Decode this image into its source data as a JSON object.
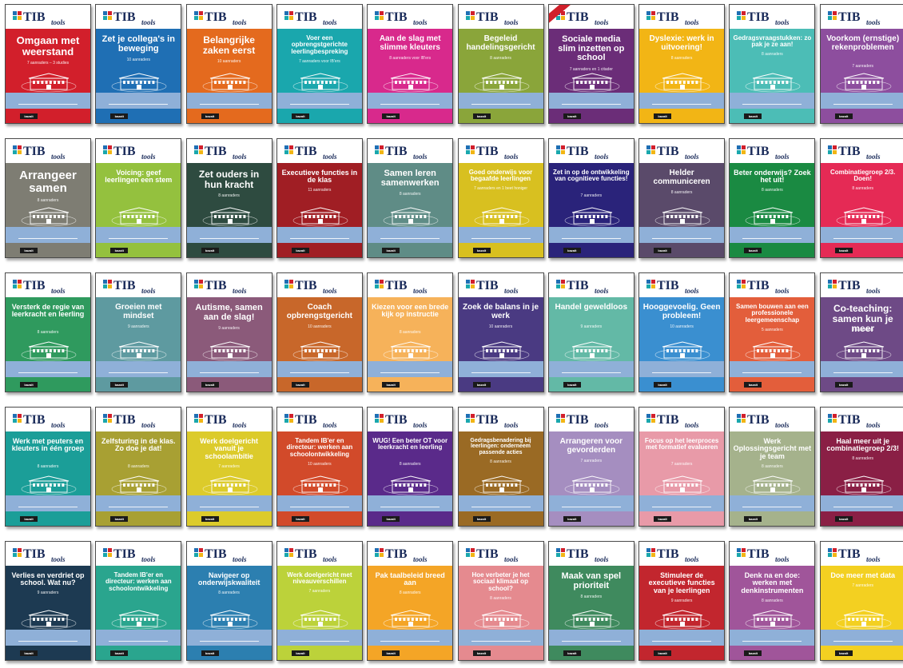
{
  "logo": {
    "letters": "TIB",
    "script": "tools",
    "publisher": "bazalt"
  },
  "books": [
    {
      "title": "Omgaan met weerstand",
      "count": "7 aanraders – 3 studies",
      "color": "#d21f2b",
      "lines": [
        "Omgaan met",
        "weerstand"
      ],
      "size": 13
    },
    {
      "title": "Zet je collega's in beweging",
      "count": "10 aanraders",
      "color": "#1f6fb4",
      "lines": [
        "Zet je collega's",
        "in beweging"
      ],
      "size": 11
    },
    {
      "title": "Belangrijke zaken eerst",
      "count": "10 aanraders",
      "color": "#e46a1e",
      "lines": [
        "Belangrijke",
        "zaken eerst"
      ],
      "size": 12
    },
    {
      "title": "Voer een opbrengstgerichte leerlingbespreking",
      "count": "7 aanraders voor IB'ers",
      "color": "#1aa7ad",
      "lines": [
        "Voer een",
        "opbrengstgerichte",
        "leerlingbespreking"
      ],
      "size": 8
    },
    {
      "title": "Aan de slag met slimme kleuters",
      "count": "8 aanraders voor IB'ers",
      "color": "#d8298c",
      "lines": [
        "Aan de slag met",
        "slimme kleuters"
      ],
      "size": 10
    },
    {
      "title": "Begeleid handelingsgericht",
      "count": "8 aanraders",
      "color": "#8aa53a",
      "lines": [
        "Begeleid",
        "handelingsgericht"
      ],
      "size": 10
    },
    {
      "title": "Sociale media slim inzetten op school",
      "count": "7 aanraders en 1 citader",
      "color": "#6b2d78",
      "lines": [
        "Sociale media",
        "slim inzetten",
        "op school"
      ],
      "size": 11,
      "badge": true
    },
    {
      "title": "Dyslexie: werk in uitvoering!",
      "count": "8 aanraders",
      "color": "#f2b515",
      "lines": [
        "Dyslexie:",
        "werk in uitvoering!"
      ],
      "size": 10
    },
    {
      "title": "Gedragsvraagstukken: zo pak je ze aan!",
      "count": "8 aanraders",
      "color": "#4cbdb6",
      "lines": [
        "Gedragsvraagstukken:",
        "zo pak je ze aan!"
      ],
      "size": 8
    },
    {
      "title": "Voorkom (ernstige) rekenproblemen",
      "count": "7 aanraders",
      "color": "#8d4e9e",
      "lines": [
        "Voorkom",
        "(ernstige)",
        "rekenproblemen"
      ],
      "size": 10
    },
    {
      "title": "Arrangeer samen",
      "count": "8 aanraders",
      "color": "#7e7d73",
      "lines": [
        "Arrangeer",
        "samen"
      ],
      "size": 15
    },
    {
      "title": "Voicing: geef leerlingen een stem",
      "count": "",
      "color": "#94c13e",
      "lines": [
        "Voicing: geef",
        "leerlingen een stem"
      ],
      "size": 9
    },
    {
      "title": "Zet ouders in hun kracht",
      "count": "8 aanraders",
      "color": "#2e4b40",
      "lines": [
        "Zet ouders",
        "in hun kracht"
      ],
      "size": 12
    },
    {
      "title": "Executieve functies in de klas",
      "count": "11 aanraders",
      "color": "#a01e24",
      "lines": [
        "Executieve",
        "functies in de klas"
      ],
      "size": 9
    },
    {
      "title": "Samen leren samenwerken",
      "count": "8 aanraders",
      "color": "#5f8c86",
      "lines": [
        "Samen leren",
        "samenwerken"
      ],
      "size": 11
    },
    {
      "title": "Goed onderwijs voor begaafde leerlingen",
      "count": "7 aanraders en 1 beet honiger",
      "color": "#d8c020",
      "lines": [
        "Goed onderwijs voor",
        "begaafde leerlingen"
      ],
      "size": 8
    },
    {
      "title": "Zet in op de ontwikkeling van cognitieve functies!",
      "count": "7 aanraders",
      "color": "#2a237a",
      "lines": [
        "Zet in op de",
        "ontwikkeling van",
        "cognitieve functies!"
      ],
      "size": 8
    },
    {
      "title": "Helder communiceren",
      "count": "8 aanraders",
      "color": "#5a4a6a",
      "lines": [
        "Helder",
        "communiceren"
      ],
      "size": 10
    },
    {
      "title": "Beter onderwijs? Zoek het uit!",
      "count": "8 aanraders",
      "color": "#1a8a42",
      "lines": [
        "Beter onderwijs?",
        "Zoek het uit!"
      ],
      "size": 9
    },
    {
      "title": "Combinatiegroep 2/3. Doen!",
      "count": "8 aanraders",
      "color": "#e52a55",
      "lines": [
        "Combinatiegroep 2/3.",
        "Doen!"
      ],
      "size": 8
    },
    {
      "title": "Versterk de regie van leerkracht en leerling",
      "count": "8 aanraders",
      "color": "#2f9a5e",
      "lines": [
        "Versterk de regie",
        "van leerkracht",
        "en leerling"
      ],
      "size": 9
    },
    {
      "title": "Groeien met mindset",
      "count": "9 aanraders",
      "color": "#5e9aa0",
      "lines": [
        "Groeien met",
        "mindset"
      ],
      "size": 10
    },
    {
      "title": "Autisme, samen aan de slag!",
      "count": "9 aanraders",
      "color": "#8b5a7a",
      "lines": [
        "Autisme,",
        "samen aan de slag!"
      ],
      "size": 11
    },
    {
      "title": "Coach opbrengstgericht",
      "count": "10 aanraders",
      "color": "#c8672a",
      "lines": [
        "Coach",
        "opbrengstgericht"
      ],
      "size": 10
    },
    {
      "title": "Kiezen voor een brede kijk op instructie",
      "count": "8 aanraders",
      "color": "#f6b25a",
      "lines": [
        "Kiezen voor een",
        "brede kijk op",
        "instructie"
      ],
      "size": 9
    },
    {
      "title": "Zoek de balans in je werk",
      "count": "10 aanraders",
      "color": "#4a3a82",
      "lines": [
        "Zoek de balans",
        "in je werk"
      ],
      "size": 10
    },
    {
      "title": "Handel geweldloos",
      "count": "9 aanraders",
      "color": "#63b9a6",
      "lines": [
        "Handel",
        "geweldloos"
      ],
      "size": 10
    },
    {
      "title": "Hooggevoelig. Geen probleem!",
      "count": "10 aanraders",
      "color": "#3a8fd0",
      "lines": [
        "Hooggevoelig.",
        "Geen probleem!"
      ],
      "size": 10
    },
    {
      "title": "Samen bouwen aan een professionele leergemeenschap",
      "count": "5 aanraders",
      "color": "#e35e3b",
      "lines": [
        "Samen bouwen aan",
        "een professionele",
        "leergemeenschap"
      ],
      "size": 8
    },
    {
      "title": "Co-teaching: samen kun je meer",
      "count": "9 aanraders",
      "color": "#6e4a86",
      "lines": [
        "Co-teaching:",
        "samen kun je meer"
      ],
      "size": 12
    },
    {
      "title": "Werk met peuters en kleuters in één groep",
      "count": "8 aanraders",
      "color": "#1b9e98",
      "lines": [
        "Werk met peuters",
        "en kleuters in",
        "één groep"
      ],
      "size": 9
    },
    {
      "title": "Zelfsturing in de klas. Zo doe je dat!",
      "count": "8 aanraders",
      "color": "#a8a033",
      "lines": [
        "Zelfsturing",
        "in de klas.",
        "Zo doe je dat!"
      ],
      "size": 9
    },
    {
      "title": "Werk doelgericht vanuit je schoolambitie",
      "count": "7 aanraders",
      "color": "#dccb2b",
      "lines": [
        "Werk doelgericht",
        "vanuit je",
        "schoolambitie"
      ],
      "size": 9
    },
    {
      "title": "Tandem IB'er en directeur: werken aan schoolontwikkeling",
      "count": "10 aanraders",
      "color": "#d24a2a",
      "lines": [
        "Tandem IB'er en",
        "directeur: werken aan",
        "schoolontwikkeling"
      ],
      "size": 8
    },
    {
      "title": "WUG! Een beter OT voor leerkracht en leerling",
      "count": "8 aanraders",
      "color": "#5a2a8a",
      "lines": [
        "WUG!",
        "Een beter OT voor",
        "leerkracht en leerling"
      ],
      "size": 8
    },
    {
      "title": "Gedragsbenadering bij leerlingen: onderneem passende acties",
      "count": "8 aanraders",
      "color": "#9a6a24",
      "lines": [
        "Gedragsbenadering",
        "bij leerlingen: onderneem",
        "passende acties"
      ],
      "size": 7
    },
    {
      "title": "Arrangeren voor gevorderden",
      "count": "7 aanraders",
      "color": "#a58ec0",
      "lines": [
        "Arrangeren voor",
        "gevorderden"
      ],
      "size": 10
    },
    {
      "title": "Focus op het leerproces met formatief evalueren",
      "count": "7 aanraders",
      "color": "#e89aa8",
      "lines": [
        "Focus op het",
        "leerproces met",
        "formatief evalueren"
      ],
      "size": 8
    },
    {
      "title": "Werk Oplossingsgericht met je team",
      "count": "8 aanraders",
      "color": "#a5b28c",
      "lines": [
        "Werk",
        "Oplossingsgericht",
        "met je team"
      ],
      "size": 9
    },
    {
      "title": "Haal meer uit je combinatiegroep 2/3!",
      "count": "8 aanraders",
      "color": "#8a1f45",
      "lines": [
        "Haal meer uit je",
        "combinatiegroep 2/3!"
      ],
      "size": 9
    },
    {
      "title": "Verlies en verdriet op school. Wat nu?",
      "count": "9 aanraders",
      "color": "#1d3a52",
      "lines": [
        "Verlies en verdriet",
        "op school. Wat nu?"
      ],
      "size": 9
    },
    {
      "title": "Tandem IB'er en directeur: werken aan schoolontwikkeling",
      "count": "",
      "color": "#2aa58e",
      "lines": [
        "Tandem IB'er en",
        "directeur: werken aan",
        "schoolontwikkeling"
      ],
      "size": 8
    },
    {
      "title": "Navigeer op onderwijskwaliteit",
      "count": "8 aanraders",
      "color": "#2c7fb0",
      "lines": [
        "Navigeer op",
        "onderwijskwaliteit"
      ],
      "size": 9
    },
    {
      "title": "Werk doelgericht met niveauverschillen",
      "count": "7 aanraders",
      "color": "#bcd23a",
      "lines": [
        "Werk doelgericht met",
        "niveauverschillen"
      ],
      "size": 8
    },
    {
      "title": "Pak taalbeleid breed aan",
      "count": "8 aanraders",
      "color": "#f4a526",
      "lines": [
        "Pak taalbeleid",
        "breed aan"
      ],
      "size": 9
    },
    {
      "title": "Hoe verbeter je het sociaal klimaat op school?",
      "count": "8 aanraders",
      "color": "#e58a8f",
      "lines": [
        "Hoe verbeter je het",
        "sociaal klimaat",
        "op school?"
      ],
      "size": 8
    },
    {
      "title": "Maak van spel prioriteit",
      "count": "8 aanraders",
      "color": "#3f8a5e",
      "lines": [
        "Maak van",
        "spel prioriteit"
      ],
      "size": 11
    },
    {
      "title": "Stimuleer de executieve functies van je leerlingen",
      "count": "9 aanraders",
      "color": "#c2262e",
      "lines": [
        "Stimuleer de",
        "executieve functies",
        "van je leerlingen"
      ],
      "size": 9
    },
    {
      "title": "Denk na en doe: werken met denkinstrumenten",
      "count": "8 aanraders",
      "color": "#a0559a",
      "lines": [
        "Denk na en doe:",
        "werken met",
        "denkinstrumenten"
      ],
      "size": 9
    },
    {
      "title": "Doe meer met data",
      "count": "7 aanraders",
      "color": "#f3d021",
      "lines": [
        "Doe meer met data"
      ],
      "size": 9
    }
  ]
}
